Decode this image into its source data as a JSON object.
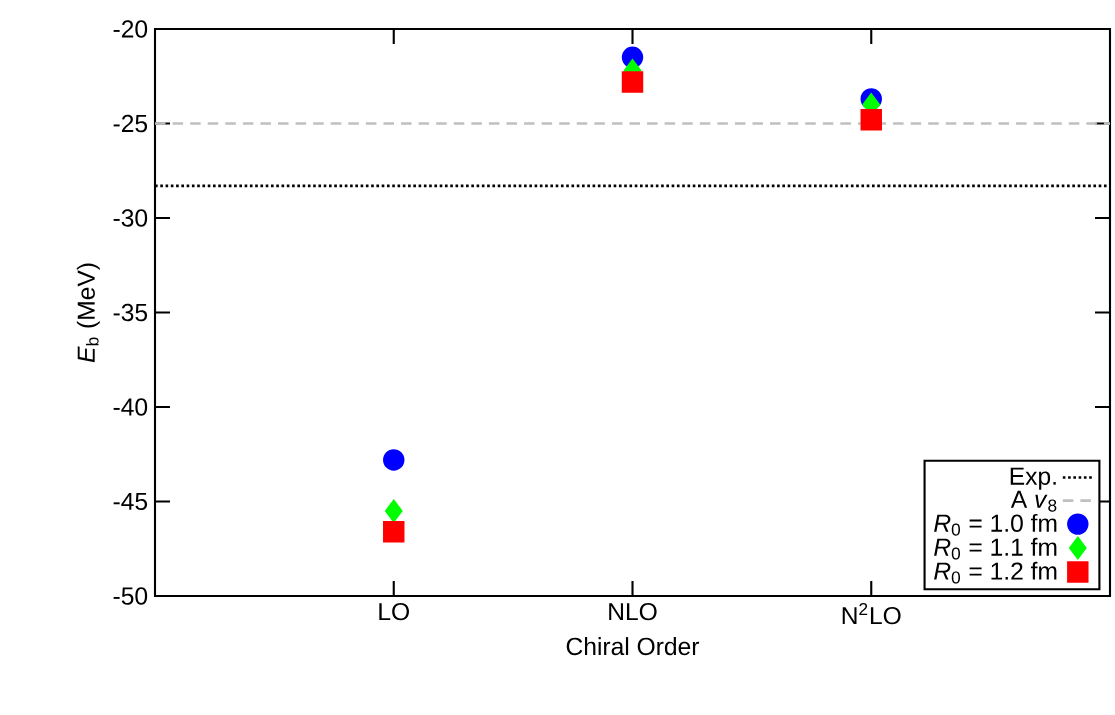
{
  "chart_data": {
    "type": "scatter",
    "xlabel": "Chiral Order",
    "ylabel": "*E*$_{b}$ (MeV)",
    "categories": [
      "LO",
      "NLO",
      "N$^{2}$LO"
    ],
    "series": [
      {
        "name": "*R*$_{0}$ = 1.0 fm",
        "color": "#0000ff",
        "marker": "circle",
        "values": [
          -42.8,
          -21.5,
          -23.7
        ]
      },
      {
        "name": "*R*$_{0}$ = 1.1 fm",
        "color": "#00ff00",
        "marker": "diamond",
        "values": [
          -45.5,
          -22.2,
          -24.0
        ]
      },
      {
        "name": "*R*$_{0}$ = 1.2 fm",
        "color": "#ff0000",
        "marker": "square",
        "values": [
          -46.6,
          -22.8,
          -24.8
        ]
      }
    ],
    "ref_lines": [
      {
        "axis": "y",
        "value": -28.3,
        "label": "Exp.",
        "color": "#000000",
        "line_style": "dotted"
      },
      {
        "axis": "y",
        "value": -25.0,
        "label": "A *v*$_{8}$",
        "color": "#c0c0c0",
        "line_style": "dashed"
      }
    ],
    "ylim": [
      -50,
      -20
    ],
    "yticks": [
      -50,
      -45,
      -40,
      -35,
      -30,
      -25,
      -20
    ],
    "grid": false,
    "legend": "bottom right"
  }
}
